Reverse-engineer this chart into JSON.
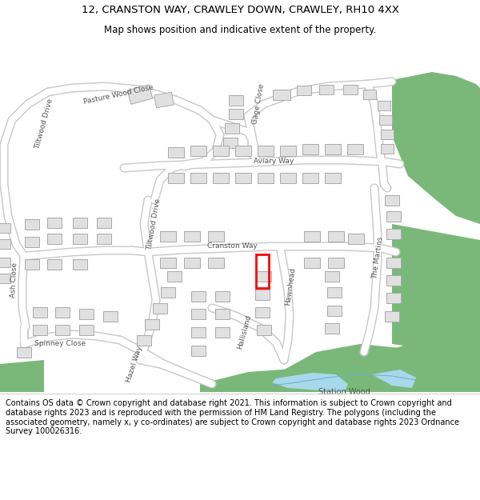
{
  "title_line1": "12, CRANSTON WAY, CRAWLEY DOWN, CRAWLEY, RH10 4XX",
  "title_line2": "Map shows position and indicative extent of the property.",
  "footer_text": "Contains OS data © Crown copyright and database right 2021. This information is subject to Crown copyright and database rights 2023 and is reproduced with the permission of HM Land Registry. The polygons (including the associated geometry, namely x, y co-ordinates) are subject to Crown copyright and database rights 2023 Ordnance Survey 100026316.",
  "title_fontsize": 9.5,
  "subtitle_fontsize": 8.5,
  "footer_fontsize": 7.0,
  "map_bg_color": "#f5f5f5",
  "road_color": "#ffffff",
  "road_outline_color": "#c8c8c8",
  "building_fill": "#e0e0e0",
  "building_outline": "#aaaaaa",
  "green_color": "#7ab87a",
  "water_color": "#a8d8ea",
  "property_color": "#ff0000",
  "text_color": "#555555",
  "bg_color": "#ffffff"
}
